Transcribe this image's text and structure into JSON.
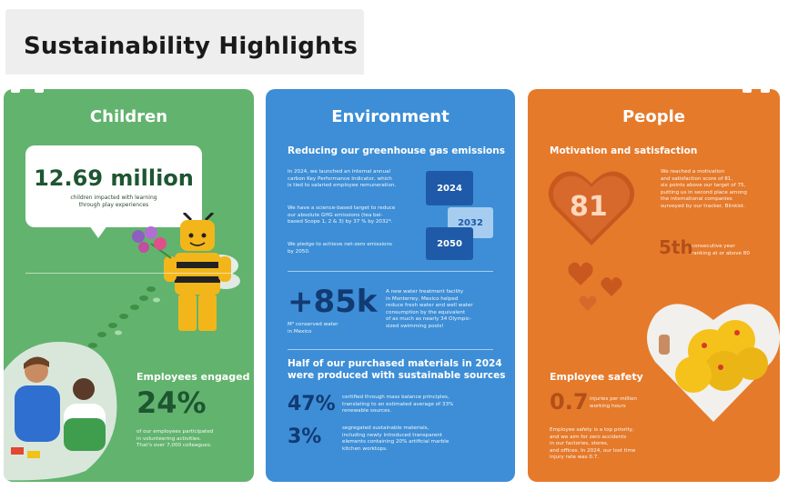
{
  "page": {
    "title": "Sustainability Highlights"
  },
  "children": {
    "title": "Children",
    "highlight_value": "12.69 million",
    "highlight_label_line1": "children impacted with learning",
    "highlight_label_line2": "through play experiences",
    "employees_heading": "Employees engaged",
    "employees_value": "24%",
    "employees_desc_line1": "of our employees participated",
    "employees_desc_line2": "in volunteering activities.",
    "employees_desc_line3": "That's over 7,000 colleagues."
  },
  "environment": {
    "title": "Environment",
    "ghg_heading": "Reducing our greenhouse gas emissions",
    "ghg_p1_line1": "In 2024, we launched an internal annual",
    "ghg_p1_line2": "carbon Key Performance Indicator, which",
    "ghg_p1_line3": "is tied to salaried employee remuneration.",
    "ghg_p2_line1": "We have a science-based target to reduce",
    "ghg_p2_line2": "our absolute GHG emissions (tea bei-",
    "ghg_p2_line3": "based Scope 1, 2 & 3) by 37 % by 2032*.",
    "ghg_p3_line1": "We pledge to achieve net-zero emissions",
    "ghg_p3_line2": "by 2050.",
    "brick_years": [
      "2024",
      "2032",
      "2050"
    ],
    "water_value": "+85k",
    "water_label_line1": "M³ conserved water",
    "water_label_line2": "in Mexico",
    "water_desc_line1": "A new water treatment facility",
    "water_desc_line2": "in Monterrey, Mexico helped",
    "water_desc_line3": "reduce fresh water and well water",
    "water_desc_line4": "consumption by the equivalent",
    "water_desc_line5": "of as much as nearly 34 Olympic-",
    "water_desc_line6": "sized swimming pools!",
    "materials_heading_line1": "Half of our purchased materials in 2024",
    "materials_heading_line2": "were produced with sustainable sources",
    "materials": [
      {
        "value": "47%",
        "line1": "certified through mass balance principles,",
        "line2": "translating to an estimated average of 33%",
        "line3": "renewable sources."
      },
      {
        "value": "3%",
        "line1": "segregated sustainable materials,",
        "line2": "including newly introduced transparent",
        "line3": "elements containing 20% artificial marble",
        "line4": "kitchen worktops."
      }
    ]
  },
  "people": {
    "title": "People",
    "motivation_heading": "Motivation and satisfaction",
    "heart_value": "81",
    "motivation_desc_line1": "We reached a motivation",
    "motivation_desc_line2": "and satisfaction score of 81,",
    "motivation_desc_line3": "six points above our target of 75,",
    "motivation_desc_line4": "putting us in second place among",
    "motivation_desc_line5": "the international companies",
    "motivation_desc_line6": "surveyed by our tracker, Blinkist.",
    "rank_value": "5th",
    "rank_label_line1": "consecutive year",
    "rank_label_line2": "ranking at or above 80",
    "safety_heading": "Employee safety",
    "safety_value": "0.7",
    "safety_label_line1": "injuries per million",
    "safety_label_line2": "working hours",
    "safety_desc_line1": "Employee safety is a top priority,",
    "safety_desc_line2": "and we aim for zero accidents",
    "safety_desc_line3": "in our factories, stores,",
    "safety_desc_line4": "and offices. In 2024, our lost time",
    "safety_desc_line5": "injury rate was 0.7."
  },
  "colors": {
    "children": "#62b36e",
    "environment": "#3d8ed6",
    "people": "#e57a2b"
  }
}
